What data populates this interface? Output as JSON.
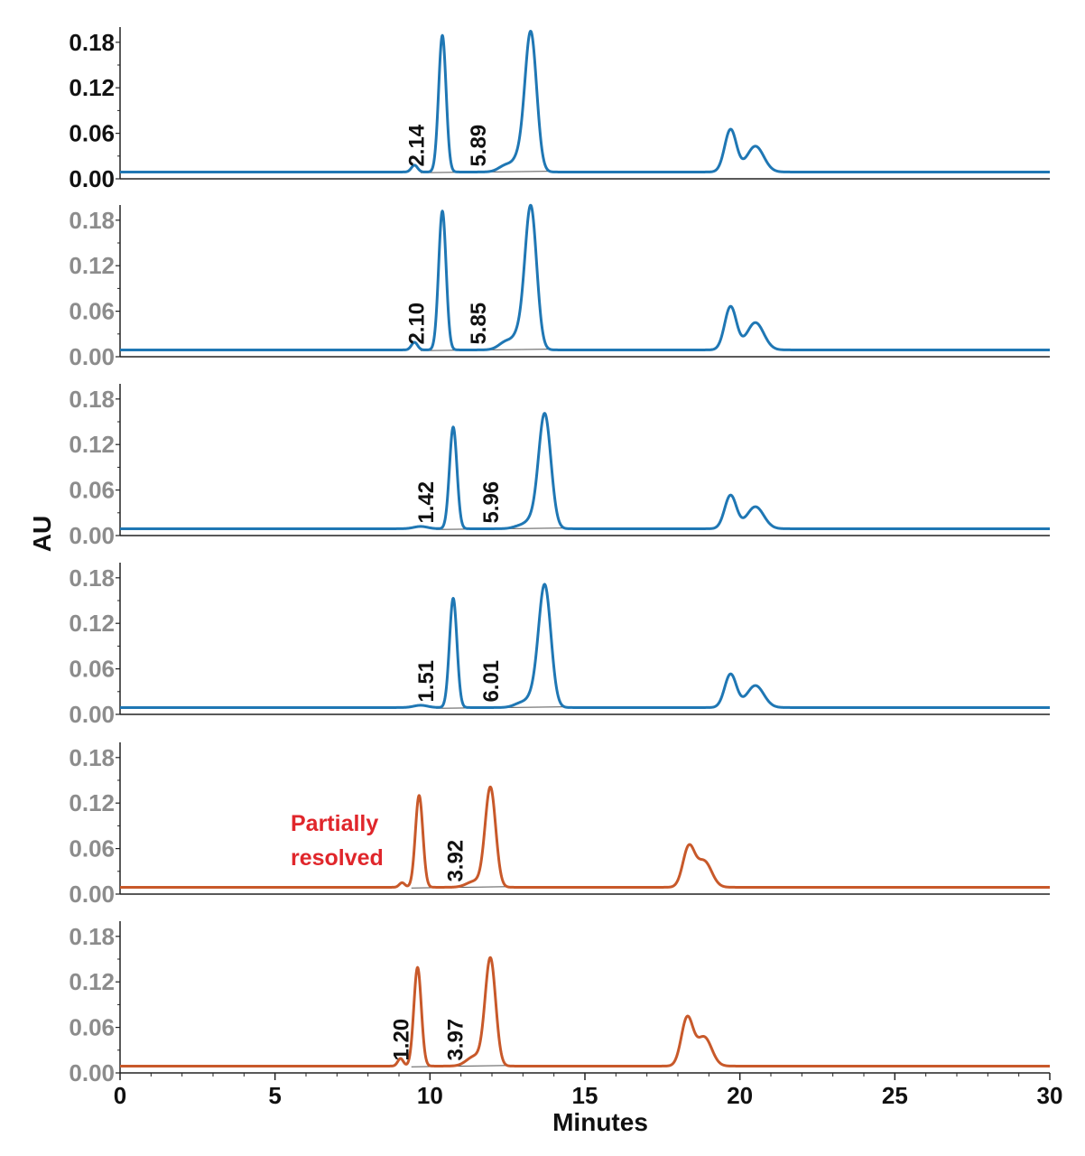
{
  "chart_data": {
    "type": "line",
    "xlabel": "Minutes",
    "ylabel": "AU",
    "xlim": [
      0,
      30
    ],
    "ylim": [
      0,
      0.2
    ],
    "x_ticks": [
      "0",
      "5",
      "10",
      "15",
      "20",
      "25",
      "30"
    ],
    "y_ticks": [
      "0.00",
      "0.06",
      "0.12",
      "0.18"
    ],
    "colors": {
      "blue": "#1f77b4",
      "orange": "#c8592a",
      "baseline": "#555555",
      "first_panel_ticks": "#111111",
      "other_panel_ticks": "#8c8c8c",
      "annotation": "#e0262b"
    },
    "annotation": {
      "line1": "Partially",
      "line2": "resolved"
    },
    "series": [
      {
        "color": "blue",
        "peaks": [
          [
            9.5,
            0.009,
            0.1
          ],
          [
            10.4,
            0.18,
            0.12
          ],
          [
            12.5,
            0.01,
            0.25
          ],
          [
            12.85,
            0.012,
            0.16
          ],
          [
            13.25,
            0.185,
            0.19
          ],
          [
            19.7,
            0.056,
            0.19
          ],
          [
            20.5,
            0.034,
            0.27
          ]
        ],
        "labels": [
          {
            "text": "2.14",
            "x": 9.8,
            "y": 0.016
          },
          {
            "text": "5.89",
            "x": 11.8,
            "y": 0.016
          }
        ]
      },
      {
        "color": "blue",
        "peaks": [
          [
            9.5,
            0.01,
            0.1
          ],
          [
            10.4,
            0.183,
            0.12
          ],
          [
            12.5,
            0.012,
            0.25
          ],
          [
            12.85,
            0.013,
            0.16
          ],
          [
            13.25,
            0.19,
            0.19
          ],
          [
            19.7,
            0.057,
            0.19
          ],
          [
            20.5,
            0.036,
            0.27
          ]
        ],
        "labels": [
          {
            "text": "2.10",
            "x": 9.8,
            "y": 0.016
          },
          {
            "text": "5.85",
            "x": 11.8,
            "y": 0.016
          }
        ]
      },
      {
        "color": "blue",
        "peaks": [
          [
            9.7,
            0.003,
            0.22
          ],
          [
            10.75,
            0.134,
            0.12
          ],
          [
            13.0,
            0.005,
            0.25
          ],
          [
            13.25,
            0.006,
            0.16
          ],
          [
            13.7,
            0.152,
            0.2
          ],
          [
            19.7,
            0.044,
            0.19
          ],
          [
            20.5,
            0.029,
            0.27
          ]
        ],
        "labels": [
          {
            "text": "1.42",
            "x": 10.1,
            "y": 0.016
          },
          {
            "text": "5.96",
            "x": 12.2,
            "y": 0.016
          }
        ]
      },
      {
        "color": "blue",
        "peaks": [
          [
            9.7,
            0.003,
            0.22
          ],
          [
            10.75,
            0.144,
            0.12
          ],
          [
            13.0,
            0.007,
            0.25
          ],
          [
            13.3,
            0.008,
            0.16
          ],
          [
            13.7,
            0.162,
            0.2
          ],
          [
            19.7,
            0.044,
            0.19
          ],
          [
            20.5,
            0.029,
            0.27
          ]
        ],
        "labels": [
          {
            "text": "1.51",
            "x": 10.1,
            "y": 0.016
          },
          {
            "text": "6.01",
            "x": 12.2,
            "y": 0.016
          }
        ]
      },
      {
        "color": "orange",
        "peaks": [
          [
            9.1,
            0.006,
            0.09
          ],
          [
            9.65,
            0.121,
            0.12
          ],
          [
            11.45,
            0.008,
            0.26
          ],
          [
            11.95,
            0.131,
            0.17
          ],
          [
            18.35,
            0.052,
            0.19
          ],
          [
            18.85,
            0.034,
            0.24
          ]
        ],
        "labels": [
          {
            "text": "3.92",
            "x": 11.05,
            "y": 0.016
          }
        ]
      },
      {
        "color": "orange",
        "peaks": [
          [
            9.05,
            0.01,
            0.09
          ],
          [
            9.6,
            0.13,
            0.12
          ],
          [
            11.45,
            0.013,
            0.26
          ],
          [
            11.95,
            0.141,
            0.17
          ],
          [
            18.3,
            0.063,
            0.19
          ],
          [
            18.85,
            0.038,
            0.24
          ]
        ],
        "labels": [
          {
            "text": "1.20",
            "x": 9.3,
            "y": 0.016
          },
          {
            "text": "3.97",
            "x": 11.05,
            "y": 0.016
          }
        ]
      }
    ]
  }
}
